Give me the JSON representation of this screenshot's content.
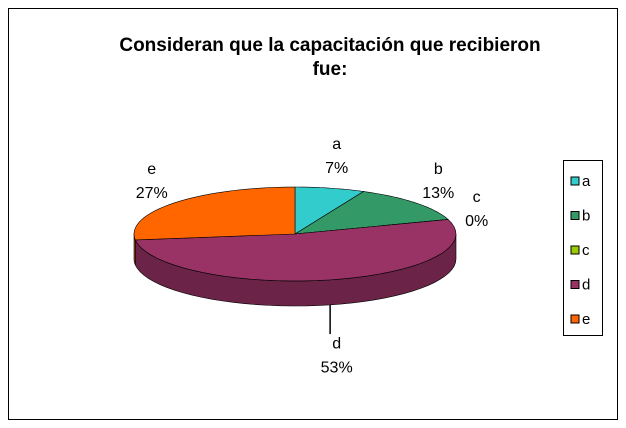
{
  "chart_data": {
    "type": "pie",
    "title": "Consideran que la capacitación que recibieron fue:",
    "categories": [
      "a",
      "b",
      "c",
      "d",
      "e"
    ],
    "values": [
      7,
      13,
      0,
      53,
      27
    ],
    "value_labels": [
      "7%",
      "13%",
      "0%",
      "53%",
      "27%"
    ],
    "colors": [
      "#33CCCC",
      "#339966",
      "#99CC00",
      "#993366",
      "#FF6600"
    ],
    "legend": "right"
  }
}
